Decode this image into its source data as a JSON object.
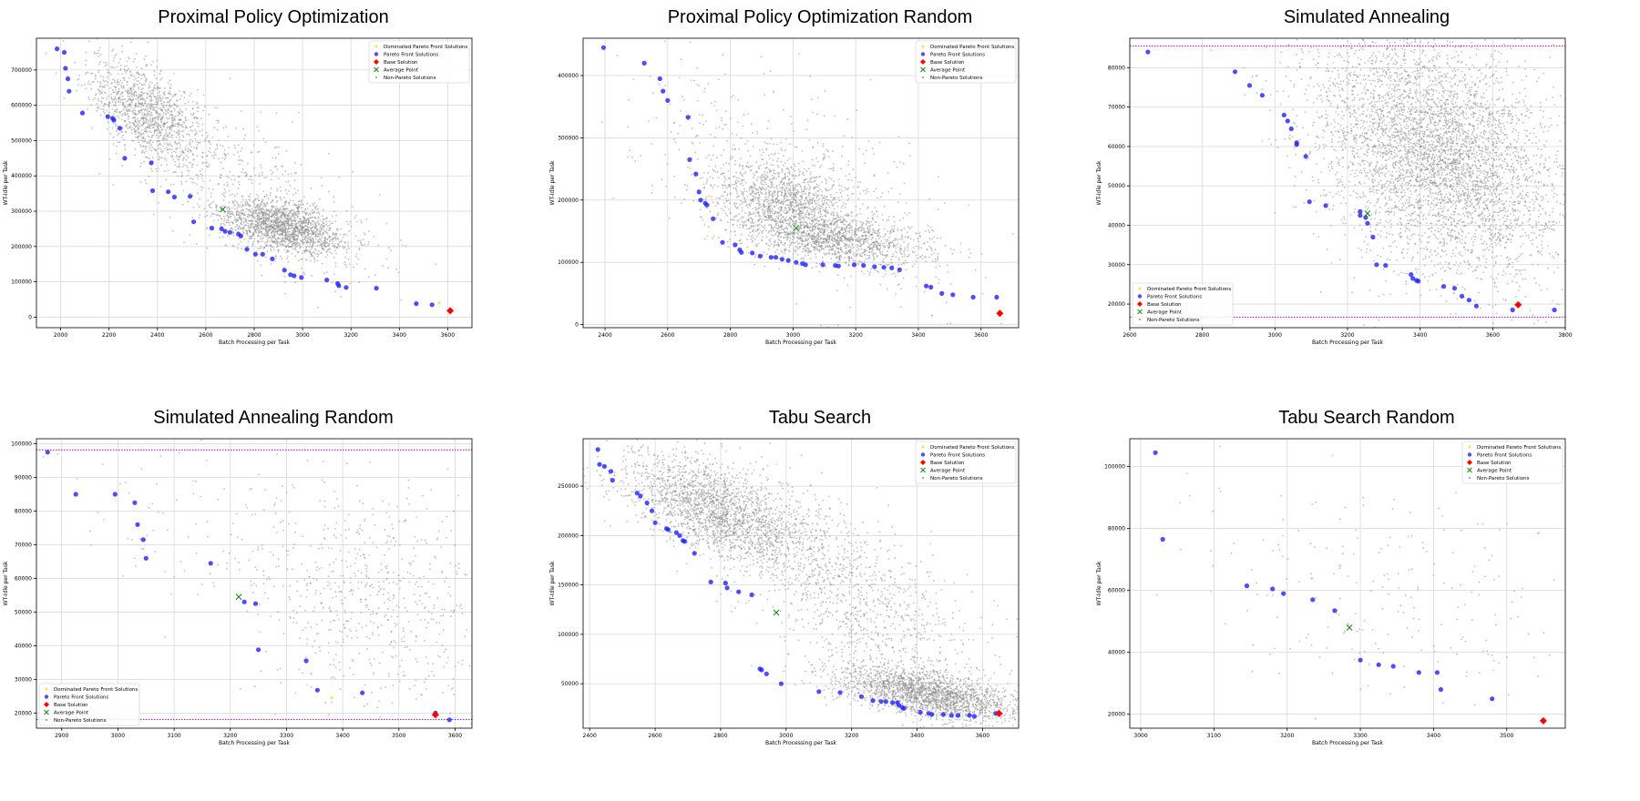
{
  "chart_data": [
    {
      "title": "Proximal Policy Optimization",
      "type": "scatter",
      "xlabel": "Batch Processing per Task",
      "ylabel": "WT-Idle per Task",
      "xlim": [
        1900,
        3700
      ],
      "ylim": [
        -30000,
        790000
      ],
      "xticks": [
        2000,
        2200,
        2400,
        2600,
        2800,
        3000,
        3200,
        3400,
        3600
      ],
      "yticks": [
        0,
        100000,
        200000,
        300000,
        400000,
        500000,
        600000,
        700000
      ],
      "legend_position": "upper right",
      "legend": [
        "Dominated Pareto Front Solutions",
        "Pareto Front Solutions",
        "Base Solution",
        "Average Point",
        "Non-Pareto Solutions"
      ],
      "pareto": [
        [
          1985,
          760000
        ],
        [
          2015,
          750000
        ],
        [
          2020,
          705000
        ],
        [
          2030,
          675000
        ],
        [
          2035,
          640000
        ],
        [
          2090,
          578000
        ],
        [
          2195,
          568000
        ],
        [
          2215,
          563000
        ],
        [
          2220,
          558000
        ],
        [
          2245,
          535000
        ],
        [
          2265,
          450000
        ],
        [
          2375,
          437000
        ],
        [
          2380,
          358000
        ],
        [
          2445,
          355000
        ],
        [
          2470,
          340000
        ],
        [
          2535,
          342000
        ],
        [
          2550,
          270000
        ],
        [
          2625,
          252000
        ],
        [
          2665,
          250000
        ],
        [
          2680,
          243000
        ],
        [
          2700,
          240000
        ],
        [
          2735,
          235000
        ],
        [
          2745,
          230000
        ],
        [
          2770,
          192000
        ],
        [
          2805,
          178000
        ],
        [
          2835,
          178000
        ],
        [
          2875,
          165000
        ],
        [
          2925,
          133000
        ],
        [
          2950,
          120000
        ],
        [
          2965,
          117000
        ],
        [
          2995,
          112000
        ],
        [
          3100,
          105000
        ],
        [
          3145,
          95000
        ],
        [
          3150,
          89000
        ],
        [
          3180,
          84000
        ],
        [
          3305,
          82000
        ],
        [
          3470,
          38000
        ],
        [
          3535,
          35000
        ]
      ],
      "base": [
        3610,
        18000
      ],
      "average": [
        2670,
        305000
      ],
      "dominated": [
        [
          3565,
          40000
        ]
      ],
      "hlines": [],
      "clouds": [
        {
          "count": 1200,
          "cx": 2360,
          "cy": 580000,
          "sx": 120,
          "sy": 75000,
          "rho": -0.55
        },
        {
          "count": 1700,
          "cx": 2920,
          "cy": 255000,
          "sx": 130,
          "sy": 40000,
          "rho": -0.5
        },
        {
          "count": 500,
          "cx": 2750,
          "cy": 380000,
          "sx": 290,
          "sy": 130000,
          "rho": -0.7
        }
      ]
    },
    {
      "title": "Proximal Policy Optimization Random",
      "type": "scatter",
      "xlabel": "Batch Processing per Task",
      "ylabel": "WT-Idle per Task",
      "xlim": [
        2330,
        3720
      ],
      "ylim": [
        -5000,
        460000
      ],
      "xticks": [
        2400,
        2600,
        2800,
        3000,
        3200,
        3400,
        3600
      ],
      "yticks": [
        0,
        100000,
        200000,
        300000,
        400000
      ],
      "legend_position": "upper right",
      "legend": [
        "Dominated Pareto Front Solutions",
        "Pareto Front Solutions",
        "Base Solution",
        "Average Point",
        "Non-Pareto Solutions"
      ],
      "pareto": [
        [
          2395,
          445000
        ],
        [
          2525,
          420000
        ],
        [
          2575,
          395000
        ],
        [
          2585,
          375000
        ],
        [
          2600,
          360000
        ],
        [
          2665,
          333000
        ],
        [
          2670,
          265000
        ],
        [
          2690,
          242000
        ],
        [
          2700,
          213000
        ],
        [
          2705,
          200000
        ],
        [
          2720,
          195000
        ],
        [
          2725,
          192000
        ],
        [
          2745,
          170000
        ],
        [
          2775,
          132000
        ],
        [
          2815,
          128000
        ],
        [
          2830,
          120000
        ],
        [
          2835,
          116000
        ],
        [
          2870,
          115000
        ],
        [
          2895,
          110000
        ],
        [
          2930,
          108000
        ],
        [
          2945,
          108000
        ],
        [
          2965,
          105000
        ],
        [
          2985,
          103000
        ],
        [
          3010,
          100000
        ],
        [
          3030,
          98000
        ],
        [
          3040,
          96000
        ],
        [
          3095,
          96000
        ],
        [
          3135,
          95000
        ],
        [
          3145,
          94000
        ],
        [
          3195,
          96000
        ],
        [
          3225,
          95000
        ],
        [
          3260,
          93000
        ],
        [
          3290,
          92000
        ],
        [
          3315,
          91000
        ],
        [
          3340,
          88000
        ],
        [
          3425,
          62000
        ],
        [
          3440,
          60000
        ],
        [
          3475,
          50000
        ],
        [
          3510,
          48000
        ],
        [
          3575,
          44000
        ],
        [
          3650,
          44000
        ]
      ],
      "base": [
        3660,
        18000
      ],
      "average": [
        3010,
        155000
      ],
      "dominated": [],
      "hlines": [],
      "clouds": [
        {
          "count": 1000,
          "cx": 2960,
          "cy": 205000,
          "sx": 110,
          "sy": 28000,
          "rho": -0.3
        },
        {
          "count": 1500,
          "cx": 3120,
          "cy": 140000,
          "sx": 150,
          "sy": 22000,
          "rho": -0.4
        },
        {
          "count": 500,
          "cx": 3000,
          "cy": 230000,
          "sx": 250,
          "sy": 90000,
          "rho": -0.6
        }
      ]
    },
    {
      "title": "Simulated Annealing",
      "type": "scatter",
      "xlabel": "Batch Processing per Task",
      "ylabel": "WT-Idle per Task",
      "xlim": [
        2600,
        3800
      ],
      "ylim": [
        14000,
        87500
      ],
      "xticks": [
        2600,
        2800,
        3000,
        3200,
        3400,
        3600,
        3800
      ],
      "yticks": [
        20000,
        30000,
        40000,
        50000,
        60000,
        70000,
        80000
      ],
      "legend_position": "lower left",
      "legend": [
        "Dominated Pareto Front Solutions",
        "Pareto Front Solutions",
        "Base Solution",
        "Average Point",
        "Non-Pareto Solutions"
      ],
      "pareto": [
        [
          2650,
          84000
        ],
        [
          2890,
          79000
        ],
        [
          2930,
          75500
        ],
        [
          2965,
          73000
        ],
        [
          3025,
          68000
        ],
        [
          3035,
          66500
        ],
        [
          3045,
          64500
        ],
        [
          3060,
          61000
        ],
        [
          3060,
          60500
        ],
        [
          3085,
          57500
        ],
        [
          3095,
          46000
        ],
        [
          3140,
          45000
        ],
        [
          3235,
          43500
        ],
        [
          3235,
          42500
        ],
        [
          3250,
          42000
        ],
        [
          3255,
          40500
        ],
        [
          3270,
          37000
        ],
        [
          3280,
          30000
        ],
        [
          3305,
          29800
        ],
        [
          3375,
          27500
        ],
        [
          3380,
          26500
        ],
        [
          3390,
          26000
        ],
        [
          3395,
          25800
        ],
        [
          3465,
          24500
        ],
        [
          3495,
          24000
        ],
        [
          3515,
          22000
        ],
        [
          3535,
          21000
        ],
        [
          3555,
          19500
        ],
        [
          3655,
          18500
        ],
        [
          3770,
          18500
        ]
      ],
      "base": [
        3670,
        19800
      ],
      "average": [
        3255,
        43000
      ],
      "dominated": [],
      "hlines": [
        85500,
        16700
      ],
      "clouds": [
        {
          "count": 4800,
          "cx": 3450,
          "cy": 58000,
          "sx": 170,
          "sy": 16000,
          "rho": -0.35
        }
      ]
    },
    {
      "title": "Simulated Annealing Random",
      "type": "scatter",
      "xlabel": "Batch Processing per Task",
      "ylabel": "WT-Idle per Task",
      "xlim": [
        2855,
        3630
      ],
      "ylim": [
        15500,
        101500
      ],
      "xticks": [
        2900,
        3000,
        3100,
        3200,
        3300,
        3400,
        3500,
        3600
      ],
      "yticks": [
        20000,
        30000,
        40000,
        50000,
        60000,
        70000,
        80000,
        90000,
        100000
      ],
      "legend_position": "lower left",
      "legend": [
        "Dominated Pareto Front Solutions",
        "Pareto Front Solutions",
        "Base Solution",
        "Average Point",
        "Non-Pareto Solutions"
      ],
      "pareto": [
        [
          2875,
          97500
        ],
        [
          2925,
          85000
        ],
        [
          2995,
          85000
        ],
        [
          3030,
          82500
        ],
        [
          3035,
          76000
        ],
        [
          3045,
          71500
        ],
        [
          3050,
          66000
        ],
        [
          3165,
          64500
        ],
        [
          3225,
          53000
        ],
        [
          3245,
          52500
        ],
        [
          3250,
          38800
        ],
        [
          3335,
          35500
        ],
        [
          3355,
          26800
        ],
        [
          3435,
          26000
        ],
        [
          3565,
          20000
        ],
        [
          3590,
          18000
        ]
      ],
      "base": [
        3565,
        19500
      ],
      "average": [
        3215,
        54500
      ],
      "dominated": [
        [
          3380,
          24500
        ]
      ],
      "hlines": [
        98200,
        18100
      ],
      "clouds": [
        {
          "count": 650,
          "cx": 3460,
          "cy": 52000,
          "sx": 110,
          "sy": 17000,
          "rho": -0.2
        },
        {
          "count": 120,
          "cx": 3150,
          "cy": 75000,
          "sx": 150,
          "sy": 15000,
          "rho": -0.3
        }
      ]
    },
    {
      "title": "Tabu Search",
      "type": "scatter",
      "xlabel": "Batch Processing per Task",
      "ylabel": "WT-Idle per Task",
      "xlim": [
        2380,
        3710
      ],
      "ylim": [
        5000,
        298000
      ],
      "xticks": [
        2400,
        2600,
        2800,
        3000,
        3200,
        3400,
        3600
      ],
      "yticks": [
        50000,
        100000,
        150000,
        200000,
        250000
      ],
      "legend_position": "upper right",
      "legend": [
        "Dominated Pareto Front Solutions",
        "Pareto Front Solutions",
        "Base Solution",
        "Average Point",
        "Non-Pareto Solutions"
      ],
      "pareto": [
        [
          2425,
          287000
        ],
        [
          2430,
          272000
        ],
        [
          2445,
          270000
        ],
        [
          2465,
          265000
        ],
        [
          2470,
          256000
        ],
        [
          2545,
          243000
        ],
        [
          2555,
          240000
        ],
        [
          2575,
          233000
        ],
        [
          2590,
          225000
        ],
        [
          2600,
          213000
        ],
        [
          2635,
          207000
        ],
        [
          2640,
          206000
        ],
        [
          2665,
          203000
        ],
        [
          2675,
          200000
        ],
        [
          2685,
          195000
        ],
        [
          2690,
          194000
        ],
        [
          2720,
          182000
        ],
        [
          2770,
          153000
        ],
        [
          2815,
          152000
        ],
        [
          2820,
          147000
        ],
        [
          2855,
          143000
        ],
        [
          2895,
          140000
        ],
        [
          2920,
          65000
        ],
        [
          2925,
          64000
        ],
        [
          2940,
          60000
        ],
        [
          2985,
          50000
        ],
        [
          3100,
          42000
        ],
        [
          3165,
          41000
        ],
        [
          3230,
          37000
        ],
        [
          3265,
          33000
        ],
        [
          3290,
          32000
        ],
        [
          3305,
          32000
        ],
        [
          3325,
          31000
        ],
        [
          3340,
          31000
        ],
        [
          3345,
          28000
        ],
        [
          3355,
          26000
        ],
        [
          3360,
          25000
        ],
        [
          3410,
          21000
        ],
        [
          3435,
          20000
        ],
        [
          3445,
          19000
        ],
        [
          3480,
          19000
        ],
        [
          3505,
          18000
        ],
        [
          3525,
          18000
        ],
        [
          3560,
          18000
        ],
        [
          3575,
          17000
        ],
        [
          3640,
          20000
        ]
      ],
      "base": [
        3650,
        20000
      ],
      "average": [
        2970,
        122000
      ],
      "dominated": [],
      "hlines": [],
      "clouds": [
        {
          "count": 2000,
          "cx": 2790,
          "cy": 225000,
          "sx": 140,
          "sy": 28000,
          "rho": -0.6
        },
        {
          "count": 2000,
          "cx": 3430,
          "cy": 40000,
          "sx": 140,
          "sy": 14000,
          "rho": -0.6
        },
        {
          "count": 1200,
          "cx": 3200,
          "cy": 140000,
          "sx": 220,
          "sy": 60000,
          "rho": -0.75
        }
      ]
    },
    {
      "title": "Tabu Search Random",
      "type": "scatter",
      "xlabel": "Batch Processing per Task",
      "ylabel": "WT-Idle per Task",
      "xlim": [
        2985,
        3580
      ],
      "ylim": [
        15500,
        109000
      ],
      "xticks": [
        3000,
        3100,
        3200,
        3300,
        3400,
        3500
      ],
      "yticks": [
        20000,
        40000,
        60000,
        80000,
        100000
      ],
      "legend_position": "upper right",
      "legend": [
        "Dominated Pareto Front Solutions",
        "Pareto Front Solutions",
        "Base Solution",
        "Average Point",
        "Non-Pareto Solutions"
      ],
      "pareto": [
        [
          3020,
          104500
        ],
        [
          3030,
          76500
        ],
        [
          3145,
          61500
        ],
        [
          3180,
          60500
        ],
        [
          3195,
          59000
        ],
        [
          3235,
          57000
        ],
        [
          3265,
          53500
        ],
        [
          3300,
          37500
        ],
        [
          3325,
          36000
        ],
        [
          3345,
          35500
        ],
        [
          3380,
          33500
        ],
        [
          3405,
          33500
        ],
        [
          3410,
          28000
        ],
        [
          3480,
          25000
        ]
      ],
      "base": [
        3550,
        17900
      ],
      "average": [
        3285,
        48000
      ],
      "dominated": [],
      "hlines": [],
      "clouds": [
        {
          "count": 230,
          "cx": 3330,
          "cy": 60000,
          "sx": 140,
          "sy": 20000,
          "rho": -0.4
        }
      ]
    }
  ]
}
